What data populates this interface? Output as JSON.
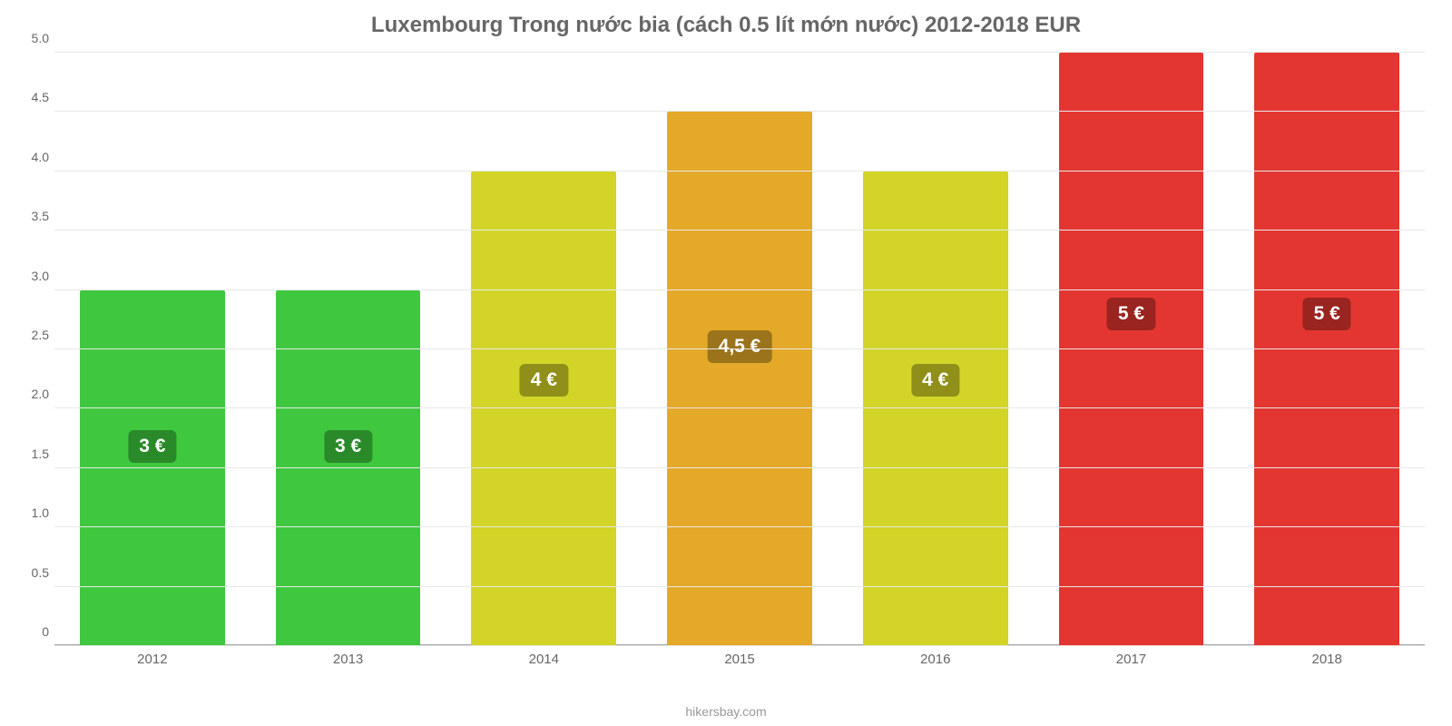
{
  "chart": {
    "type": "bar",
    "title": "Luxembourg Trong nước bia (cách 0.5 lít mớn nước) 2012-2018 EUR",
    "title_fontsize": 24,
    "title_color": "#666666",
    "source": "hikersbay.com",
    "source_color": "#999999",
    "source_fontsize": 14,
    "background_color": "#ffffff",
    "categories": [
      "2012",
      "2013",
      "2014",
      "2015",
      "2016",
      "2017",
      "2018"
    ],
    "values": [
      3,
      3,
      4,
      4.5,
      4,
      5,
      5
    ],
    "value_labels": [
      "3 €",
      "3 €",
      "4 €",
      "4,5 €",
      "4 €",
      "5 €",
      "5 €"
    ],
    "bar_colors": [
      "#3fc83f",
      "#3fc83f",
      "#d2d428",
      "#e4a928",
      "#d2d428",
      "#e33630",
      "#e33630"
    ],
    "label_bg_colors": [
      "#2a8a2a",
      "#2a8a2a",
      "#8f8f1a",
      "#9a731b",
      "#8f8f1a",
      "#9a2420",
      "#9a2420"
    ],
    "label_fontsize": 21,
    "bar_width_pct": 74,
    "ylim": [
      0,
      5
    ],
    "y_ticks": [
      0,
      0.5,
      1.0,
      1.5,
      2.0,
      2.5,
      3.0,
      3.5,
      4.0,
      4.5,
      5.0
    ],
    "y_tick_labels": [
      "0",
      "0.5",
      "1.0",
      "1.5",
      "2.0",
      "2.5",
      "3.0",
      "3.5",
      "4.0",
      "4.5",
      "5.0"
    ],
    "y_tick_fontsize": 14,
    "x_tick_fontsize": 15,
    "tick_color": "#666666",
    "grid_color": "#e8e8e8",
    "baseline_color": "#9e9e9e"
  }
}
